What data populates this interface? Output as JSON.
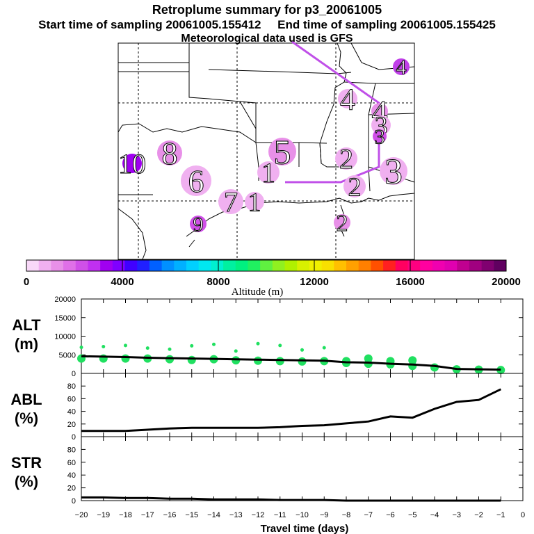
{
  "title": "Retroplume summary for p3_20061005",
  "start_label": "Start time of sampling 20061005.155412",
  "end_label": "End time of sampling 20061005.155425",
  "met_label": "Meteorological data used is GFS",
  "colorbar": {
    "label": "Altitude (m)",
    "ticks": [
      "0",
      "4000",
      "8000",
      "12000",
      "16000",
      "20000"
    ],
    "colors": [
      "#f8d8f8",
      "#f0b0f0",
      "#e890e8",
      "#e070e8",
      "#d050e8",
      "#c030f0",
      "#a000f0",
      "#8000ff",
      "#4000ff",
      "#2020ff",
      "#0060ff",
      "#0090ff",
      "#00b0ff",
      "#00d0ff",
      "#00e8f0",
      "#00f0d0",
      "#00f0a0",
      "#00f080",
      "#20f060",
      "#60f040",
      "#90f020",
      "#b0f000",
      "#d8f000",
      "#f0f000",
      "#f8e000",
      "#ffc000",
      "#ffa000",
      "#ff8000",
      "#ff5000",
      "#ff2020",
      "#ff0060",
      "#ff0080",
      "#ff00a0",
      "#f000b0",
      "#e000b0",
      "#c00090",
      "#a00080",
      "#800070",
      "#600060"
    ]
  },
  "map": {
    "markers": [
      {
        "label": "4",
        "color": "#c040e8"
      },
      {
        "label": "4",
        "color": "#f0b0f0"
      },
      {
        "label": "4",
        "color": "#e890e8"
      },
      {
        "label": "3",
        "color": "#f0b0f0"
      },
      {
        "label": "3",
        "color": "#d050e8"
      },
      {
        "label": "3",
        "color": "#f0b0f0"
      },
      {
        "label": "2",
        "color": "#f0b0f0"
      },
      {
        "label": "2",
        "color": "#f0b0f0"
      },
      {
        "label": "2",
        "color": "#e890e8"
      },
      {
        "label": "1",
        "color": "#f0b0f0"
      },
      {
        "label": "1",
        "color": "#f0b0f0"
      },
      {
        "label": "5",
        "color": "#e890e8"
      },
      {
        "label": "6",
        "color": "#f0b0f0"
      },
      {
        "label": "7",
        "color": "#f0b0f0"
      },
      {
        "label": "8",
        "color": "#e890e8"
      },
      {
        "label": "9",
        "color": "#d050e8"
      },
      {
        "label": "10",
        "color": "#a000f0"
      }
    ]
  },
  "chart_data": [
    {
      "type": "line",
      "panel": "ALT",
      "title": "ALT",
      "ylabel": "(m)",
      "ylim": [
        0,
        20000
      ],
      "yticks": [
        "0",
        "5000",
        "10000",
        "15000",
        "20000"
      ],
      "xlim": [
        -20,
        0
      ],
      "x": [
        -20,
        -19,
        -18,
        -17,
        -16,
        -15,
        -14,
        -13,
        -12,
        -11,
        -10,
        -9,
        -8,
        -7,
        -6,
        -5,
        -4,
        -3,
        -2,
        -1
      ],
      "series": [
        {
          "name": "median altitude",
          "values": [
            4600,
            4500,
            4400,
            4200,
            4100,
            4000,
            3900,
            3800,
            3700,
            3600,
            3500,
            3400,
            3000,
            2900,
            2600,
            2400,
            2000,
            1200,
            1100,
            1000
          ]
        }
      ],
      "scatter_x": [
        -20,
        -20,
        -19,
        -19,
        -18,
        -18,
        -17,
        -17,
        -16,
        -16,
        -15,
        -15,
        -14,
        -14,
        -13,
        -13,
        -12,
        -12,
        -11,
        -11,
        -10,
        -10,
        -9,
        -9,
        -8,
        -8,
        -7,
        -7,
        -6,
        -6,
        -5,
        -5,
        -4,
        -3,
        -2,
        -1
      ],
      "scatter_y": [
        4000,
        7000,
        4000,
        7200,
        4000,
        7500,
        4000,
        6800,
        3800,
        6500,
        3600,
        7400,
        3800,
        7800,
        3500,
        6000,
        3400,
        8000,
        3300,
        7500,
        3200,
        6300,
        3300,
        6900,
        2800,
        3300,
        2600,
        4000,
        2400,
        3300,
        2000,
        3500,
        1600,
        1100,
        1000,
        900
      ]
    },
    {
      "type": "line",
      "panel": "ABL",
      "title": "ABL",
      "ylabel": "(%)",
      "ylim": [
        0,
        100
      ],
      "yticks": [
        "0",
        "20",
        "40",
        "60",
        "80"
      ],
      "xlim": [
        -20,
        0
      ],
      "x": [
        -20,
        -19,
        -18,
        -17,
        -16,
        -15,
        -14,
        -13,
        -12,
        -11,
        -10,
        -9,
        -8,
        -7,
        -6,
        -5,
        -4,
        -3,
        -2,
        -1
      ],
      "series": [
        {
          "name": "ABL fraction",
          "values": [
            9,
            9,
            9,
            11,
            13,
            14,
            14,
            14,
            14,
            15,
            17,
            18,
            21,
            24,
            32,
            30,
            44,
            55,
            58,
            75
          ]
        }
      ]
    },
    {
      "type": "line",
      "panel": "STR",
      "title": "STR",
      "ylabel": "(%)",
      "ylim": [
        0,
        100
      ],
      "yticks": [
        "0",
        "20",
        "40",
        "60",
        "80"
      ],
      "xlim": [
        -20,
        0
      ],
      "xlabel": "Travel time (days)",
      "xticks": [
        "−20",
        "−19",
        "−18",
        "−17",
        "−16",
        "−15",
        "−14",
        "−13",
        "−12",
        "−11",
        "−10",
        "−9",
        "−8",
        "−7",
        "−6",
        "−5",
        "−4",
        "−3",
        "−2",
        "−1",
        "0"
      ],
      "x": [
        -20,
        -19,
        -18,
        -17,
        -16,
        -15,
        -14,
        -13,
        -12,
        -11,
        -10,
        -9,
        -8,
        -7,
        -6,
        -5,
        -4,
        -3,
        -2,
        -1
      ],
      "series": [
        {
          "name": "STR fraction",
          "values": [
            5,
            5,
            4,
            4,
            3,
            3,
            2,
            2,
            2,
            1,
            1,
            1,
            0,
            0,
            0,
            0,
            0,
            0,
            0,
            0
          ]
        }
      ]
    }
  ]
}
